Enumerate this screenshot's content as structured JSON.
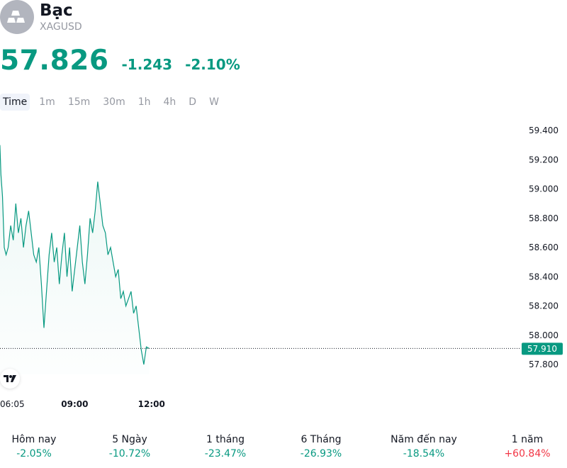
{
  "header": {
    "logo_icon": "silver-bars-icon",
    "title": "Bạc",
    "symbol": "XAGUSD"
  },
  "quote": {
    "price": "57.826",
    "change": "-1.243",
    "change_pct": "-2.10%",
    "color": "#089981"
  },
  "timeframes": [
    "Time",
    "1m",
    "15m",
    "30m",
    "1h",
    "4h",
    "D",
    "W"
  ],
  "active_timeframe": "Time",
  "chart_data": {
    "type": "area",
    "line_color": "#089981",
    "ylim": [
      57.7,
      59.5
    ],
    "y_ticks": [
      "59.400",
      "59.200",
      "59.000",
      "58.800",
      "58.600",
      "58.400",
      "58.200",
      "58.000",
      "57.800"
    ],
    "y_tick_values": [
      59.4,
      59.2,
      59.0,
      58.8,
      58.6,
      58.4,
      58.2,
      58.0,
      57.8
    ],
    "x_ticks": [
      {
        "label": "06:05",
        "value": 6.083,
        "bold": false
      },
      {
        "label": "09:00",
        "value": 9.0,
        "bold": true
      },
      {
        "label": "12:00",
        "value": 12.0,
        "bold": true
      }
    ],
    "x_range": [
      6.083,
      26.4
    ],
    "current_price_label": "57.910",
    "current_price": 57.91,
    "series": [
      {
        "x": [
          6.08,
          6.12,
          6.18,
          6.25,
          6.32,
          6.4,
          6.5,
          6.6,
          6.7,
          6.8,
          6.9,
          7.0,
          7.1,
          7.2,
          7.3,
          7.4,
          7.5,
          7.6,
          7.7,
          7.8,
          7.9,
          8.0,
          8.1,
          8.2,
          8.3,
          8.4,
          8.5,
          8.6,
          8.7,
          8.8,
          8.9,
          9.0,
          9.1,
          9.2,
          9.3,
          9.4,
          9.5,
          9.6,
          9.7,
          9.8,
          9.9,
          10.0,
          10.1,
          10.2,
          10.3,
          10.4,
          10.5,
          10.6,
          10.7,
          10.8,
          10.9,
          11.0,
          11.1,
          11.2,
          11.3,
          11.4,
          11.5,
          11.6,
          11.7,
          11.8,
          11.9,
          12.0,
          12.1,
          12.2,
          12.3,
          12.4,
          12.5,
          12.6,
          12.7,
          12.8,
          12.9,
          13.0,
          13.1,
          13.2,
          13.3,
          13.4,
          13.5,
          13.6,
          13.7,
          13.8
        ],
        "y": [
          59.3,
          59.1,
          58.95,
          58.6,
          58.55,
          58.6,
          58.75,
          58.65,
          58.9,
          58.7,
          58.8,
          58.6,
          58.75,
          58.85,
          58.7,
          58.55,
          58.5,
          58.6,
          58.35,
          58.05,
          58.3,
          58.55,
          58.7,
          58.5,
          58.6,
          58.35,
          58.55,
          58.7,
          58.4,
          58.6,
          58.3,
          58.45,
          58.6,
          58.75,
          58.5,
          58.35,
          58.55,
          58.8,
          58.7,
          58.85,
          59.05,
          58.9,
          58.75,
          58.7,
          58.55,
          58.6,
          58.5,
          58.4,
          58.45,
          58.25,
          58.3,
          58.2,
          58.25,
          58.3,
          58.15,
          58.2,
          58.05,
          57.9,
          57.8,
          57.92,
          57.91,
          57.91,
          57.91,
          57.91,
          57.91,
          57.91,
          57.91,
          57.91,
          57.91,
          57.91,
          57.91,
          57.91,
          57.91,
          57.91,
          57.91,
          57.91,
          57.91,
          57.91,
          57.91,
          57.91
        ]
      }
    ]
  },
  "performance": [
    {
      "label": "Hôm nay",
      "value": "-2.05%",
      "direction": "neg"
    },
    {
      "label": "5 Ngày",
      "value": "-10.72%",
      "direction": "neg"
    },
    {
      "label": "1 tháng",
      "value": "-23.47%",
      "direction": "neg"
    },
    {
      "label": "6 Tháng",
      "value": "-26.93%",
      "direction": "neg"
    },
    {
      "label": "Năm đến nay",
      "value": "-18.54%",
      "direction": "neg"
    },
    {
      "label": "1 năm",
      "value": "+60.84%",
      "direction": "pos"
    }
  ]
}
